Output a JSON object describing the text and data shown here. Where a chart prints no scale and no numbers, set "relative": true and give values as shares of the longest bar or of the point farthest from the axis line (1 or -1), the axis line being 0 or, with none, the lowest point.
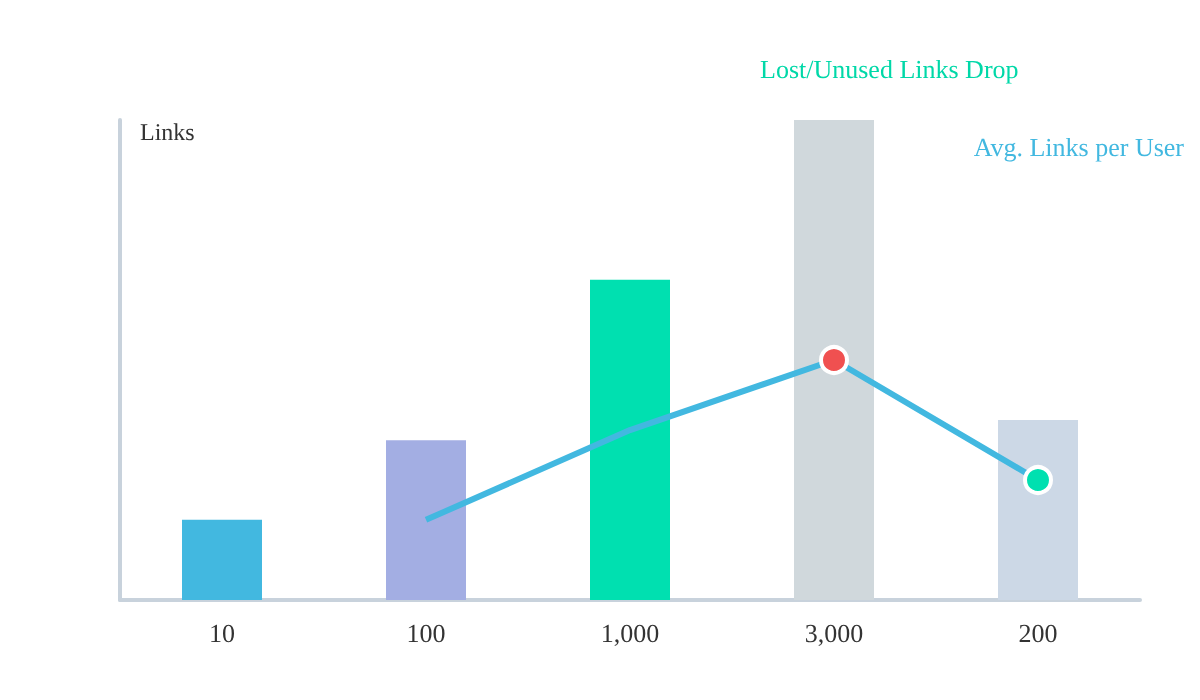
{
  "chart_data": {
    "type": "bar",
    "relative": true,
    "ylabel": "Links",
    "categories": [
      "10",
      "100",
      "1,000",
      "3,000",
      "200"
    ],
    "series": [
      {
        "colors": [
          "#42b8e0",
          "#a3aee3",
          "#00e0b0",
          "#d0d8dc",
          "#ccd8e6"
        ],
        "values": [
          0.167,
          0.333,
          0.667,
          1,
          0.375
        ]
      },
      {
        "type": "line",
        "name": "Avg. Links per User",
        "color": "#42b8e0",
        "colors": [
          null,
          null,
          null,
          "#f05050",
          "#00e0b0"
        ],
        "values": [
          null,
          0.167,
          0.354,
          0.5,
          0.25
        ]
      }
    ],
    "annotations": [
      "Lost/Unused Links Drop"
    ],
    "grid": false,
    "legend": false
  }
}
